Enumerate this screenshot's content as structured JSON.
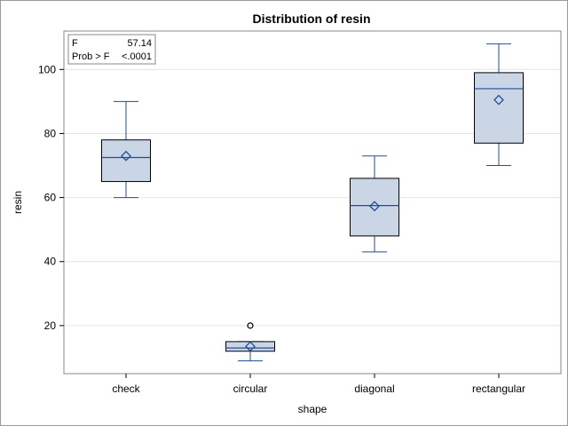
{
  "chart_data": {
    "type": "box",
    "title": "Distribution of resin",
    "xlabel": "shape",
    "ylabel": "resin",
    "ylim": [
      5,
      112
    ],
    "yticks": [
      20,
      40,
      60,
      80,
      100
    ],
    "categories": [
      "check",
      "circular",
      "diagonal",
      "rectangular"
    ],
    "boxes": [
      {
        "category": "check",
        "min": 60,
        "q1": 65,
        "median": 72.5,
        "q3": 78,
        "max": 90,
        "mean": 73,
        "outliers": []
      },
      {
        "category": "circular",
        "min": 9,
        "q1": 12,
        "median": 13,
        "q3": 15,
        "max": 15,
        "mean": 13.5,
        "outliers": [
          20
        ]
      },
      {
        "category": "diagonal",
        "min": 43,
        "q1": 48,
        "median": 57.5,
        "q3": 66,
        "max": 73,
        "mean": 57.3,
        "outliers": []
      },
      {
        "category": "rectangular",
        "min": 70,
        "q1": 77,
        "median": 94,
        "q3": 99,
        "max": 108,
        "mean": 90.5,
        "outliers": []
      }
    ],
    "grid": true,
    "inset": {
      "rows": [
        {
          "label": "F",
          "value": "57.14"
        },
        {
          "label": "Prob > F",
          "value": "<.0001"
        }
      ],
      "placement": "top-left"
    },
    "colors": {
      "box_fill": "#cad5e5",
      "box_edge": "#000000",
      "median": "#1f4e9a",
      "whisker": "#1f4e9a",
      "mean_marker": "#1f4e9a",
      "grid": "#e4e4e4"
    }
  }
}
